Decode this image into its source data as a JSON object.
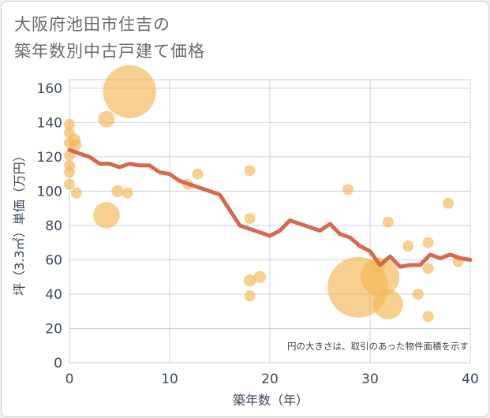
{
  "title": {
    "line1": "大阪府池田市住吉の",
    "line2": "築年数別中古戸建て価格"
  },
  "colors": {
    "bubble": "#f5b754",
    "line": "#d46a50",
    "grid": "#c9d3e0",
    "axis_text": "#3d4a5c"
  },
  "chart_data": {
    "type": "scatter",
    "title": "大阪府池田市住吉の築年数別中古戸建て価格",
    "xlabel": "築年数（年）",
    "ylabel": "坪（3.3㎡）単価（万円）",
    "xlim": [
      0,
      40
    ],
    "ylim": [
      0,
      165
    ],
    "xticks": [
      0,
      10,
      20,
      30,
      40
    ],
    "yticks": [
      0,
      20,
      40,
      60,
      80,
      100,
      120,
      140,
      160
    ],
    "grid": true,
    "annotation": "円の大きさは、取引のあった物件面積を示す",
    "bubbles": [
      {
        "x": 0,
        "y": 139,
        "size": 1
      },
      {
        "x": 0,
        "y": 134,
        "size": 1
      },
      {
        "x": 0,
        "y": 128,
        "size": 1
      },
      {
        "x": 0,
        "y": 121,
        "size": 1
      },
      {
        "x": 0,
        "y": 115,
        "size": 1
      },
      {
        "x": 0,
        "y": 111,
        "size": 1
      },
      {
        "x": 0,
        "y": 104,
        "size": 1
      },
      {
        "x": 0.5,
        "y": 130,
        "size": 1.1
      },
      {
        "x": 0.6,
        "y": 127,
        "size": 1.1
      },
      {
        "x": 0.7,
        "y": 99,
        "size": 1
      },
      {
        "x": 3.7,
        "y": 142,
        "size": 1.5
      },
      {
        "x": 3.7,
        "y": 86,
        "size": 2.4
      },
      {
        "x": 4.8,
        "y": 100,
        "size": 1.1
      },
      {
        "x": 5.8,
        "y": 99,
        "size": 1
      },
      {
        "x": 6,
        "y": 158,
        "size": 4.8
      },
      {
        "x": 11.8,
        "y": 104,
        "size": 1
      },
      {
        "x": 12.8,
        "y": 110,
        "size": 1
      },
      {
        "x": 18,
        "y": 112,
        "size": 1
      },
      {
        "x": 18,
        "y": 84,
        "size": 1
      },
      {
        "x": 18,
        "y": 48,
        "size": 1.1
      },
      {
        "x": 18,
        "y": 39,
        "size": 1
      },
      {
        "x": 19,
        "y": 50,
        "size": 1.1
      },
      {
        "x": 27.8,
        "y": 101,
        "size": 1
      },
      {
        "x": 28.8,
        "y": 44,
        "size": 5.5
      },
      {
        "x": 30.8,
        "y": 57,
        "size": 1.3
      },
      {
        "x": 31,
        "y": 50,
        "size": 3.5
      },
      {
        "x": 31.8,
        "y": 34,
        "size": 2.7
      },
      {
        "x": 31.8,
        "y": 82,
        "size": 1
      },
      {
        "x": 33.8,
        "y": 68,
        "size": 1
      },
      {
        "x": 34.8,
        "y": 40,
        "size": 1
      },
      {
        "x": 35.8,
        "y": 70,
        "size": 1
      },
      {
        "x": 35.8,
        "y": 55,
        "size": 1
      },
      {
        "x": 35.8,
        "y": 27,
        "size": 1
      },
      {
        "x": 37.8,
        "y": 93,
        "size": 1
      },
      {
        "x": 38.8,
        "y": 59,
        "size": 1
      }
    ],
    "trend_line": {
      "x": [
        0,
        1,
        2,
        3,
        4,
        5,
        6,
        7,
        8,
        9,
        10,
        11,
        12,
        13,
        14,
        15,
        16,
        17,
        18,
        19,
        20,
        21,
        22,
        23,
        24,
        25,
        26,
        27,
        28,
        29,
        30,
        31,
        32,
        33,
        34,
        35,
        36,
        37,
        38,
        39,
        40
      ],
      "y": [
        124,
        122,
        120,
        116,
        116,
        114,
        116,
        115,
        115,
        111,
        110,
        106,
        104,
        102,
        100,
        98,
        89,
        80,
        78,
        76,
        74,
        77,
        83,
        81,
        79,
        77,
        81,
        75,
        73,
        68,
        65,
        57,
        62,
        56,
        57,
        57,
        63,
        61,
        63,
        61,
        60
      ]
    }
  }
}
